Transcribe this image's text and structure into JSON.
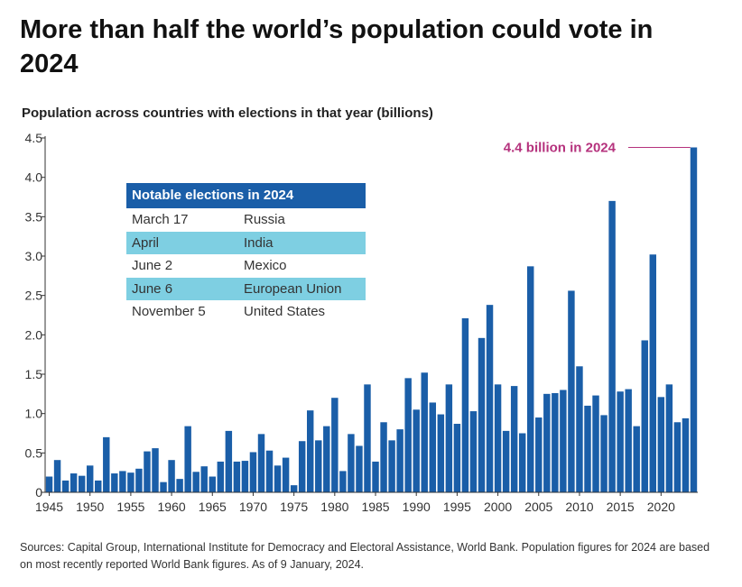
{
  "title": "More than half the world’s population could vote in 2024",
  "subtitle": "Population across countries with elections in that year (billions)",
  "annotation": {
    "text": "4.4 billion in 2024",
    "color": "#b5327d"
  },
  "notable_elections": {
    "heading": "Notable elections in 2024",
    "rows": [
      {
        "date": "March 17",
        "country": "Russia"
      },
      {
        "date": "April",
        "country": "India"
      },
      {
        "date": "June 2",
        "country": "Mexico"
      },
      {
        "date": "June 6",
        "country": "European Union"
      },
      {
        "date": "November 5",
        "country": "United States"
      }
    ]
  },
  "sources": "Sources: Capital Group, International Institute for Democracy and Electoral Assistance, World Bank. Population figures for 2024 are based on most recently reported World Bank figures. As of 9 January, 2024.",
  "colors": {
    "bar": "#1a5ea8",
    "table_header": "#1a5ea8",
    "table_alt_row": "#7ecfe2",
    "annotation": "#b5327d"
  },
  "chart_data": {
    "type": "bar",
    "title": "More than half the world’s population could vote in 2024",
    "ylabel": "Population across countries with elections in that year (billions)",
    "xlabel": "",
    "ylim": [
      0,
      4.5
    ],
    "yticks": [
      "0",
      "0.5",
      "1.0",
      "1.5",
      "2.0",
      "2.5",
      "3.0",
      "3.5",
      "4.0",
      "4.5"
    ],
    "ytick_values": [
      0,
      0.5,
      1.0,
      1.5,
      2.0,
      2.5,
      3.0,
      3.5,
      4.0,
      4.5
    ],
    "xticks": [
      "1945",
      "1950",
      "1955",
      "1960",
      "1965",
      "1970",
      "1975",
      "1980",
      "1985",
      "1990",
      "1995",
      "2000",
      "2005",
      "2010",
      "2015",
      "2020"
    ],
    "grid": false,
    "categories": [
      1945,
      1946,
      1947,
      1948,
      1949,
      1950,
      1951,
      1952,
      1953,
      1954,
      1955,
      1956,
      1957,
      1958,
      1959,
      1960,
      1961,
      1962,
      1963,
      1964,
      1965,
      1966,
      1967,
      1968,
      1969,
      1970,
      1971,
      1972,
      1973,
      1974,
      1975,
      1976,
      1977,
      1978,
      1979,
      1980,
      1981,
      1982,
      1983,
      1984,
      1985,
      1986,
      1987,
      1988,
      1989,
      1990,
      1991,
      1992,
      1993,
      1994,
      1995,
      1996,
      1997,
      1998,
      1999,
      2000,
      2001,
      2002,
      2003,
      2004,
      2005,
      2006,
      2007,
      2008,
      2009,
      2010,
      2011,
      2012,
      2013,
      2014,
      2015,
      2016,
      2017,
      2018,
      2019,
      2020,
      2021,
      2022,
      2023,
      2024
    ],
    "values": [
      0.2,
      0.41,
      0.15,
      0.24,
      0.21,
      0.34,
      0.15,
      0.7,
      0.24,
      0.27,
      0.25,
      0.3,
      0.52,
      0.56,
      0.13,
      0.41,
      0.17,
      0.84,
      0.26,
      0.33,
      0.2,
      0.39,
      0.78,
      0.39,
      0.4,
      0.51,
      0.74,
      0.53,
      0.34,
      0.44,
      0.09,
      0.65,
      1.04,
      0.66,
      0.84,
      1.2,
      0.27,
      0.74,
      0.59,
      1.37,
      0.39,
      0.89,
      0.66,
      0.8,
      1.45,
      1.05,
      1.52,
      1.14,
      0.99,
      1.37,
      0.87,
      2.21,
      1.03,
      1.96,
      2.38,
      1.37,
      0.78,
      1.35,
      0.75,
      2.87,
      0.95,
      1.25,
      1.26,
      1.3,
      2.56,
      1.6,
      1.1,
      1.23,
      0.98,
      3.7,
      1.28,
      1.31,
      0.84,
      1.93,
      3.02,
      1.21,
      1.37,
      0.89,
      0.94,
      4.38
    ]
  }
}
